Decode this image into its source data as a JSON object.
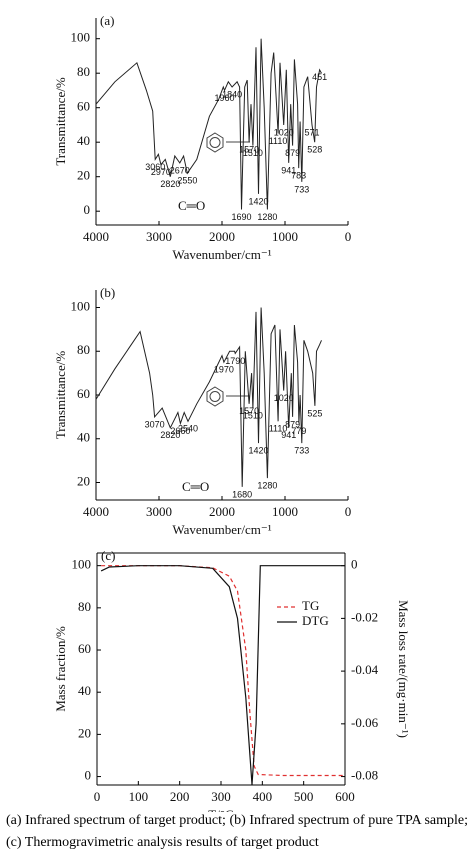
{
  "chart_data": [
    {
      "type": "line",
      "panel_label": "(a)",
      "ylabel": "Transmittance/%",
      "xlabel": "Wavenumber/cm⁻¹",
      "xlim": [
        4000,
        0
      ],
      "xticks": [
        4000,
        3000,
        2000,
        1000,
        0
      ],
      "ylim": [
        -8,
        112
      ],
      "yticks": [
        0,
        20,
        40,
        60,
        80,
        100
      ],
      "color": "#222222",
      "annotations": [
        "C═O"
      ],
      "x": [
        4000,
        3700,
        3350,
        3200,
        3100,
        3060,
        3010,
        2970,
        2900,
        2820,
        2750,
        2670,
        2610,
        2550,
        2400,
        2200,
        2050,
        1980,
        1960,
        1900,
        1840,
        1760,
        1720,
        1690,
        1640,
        1600,
        1570,
        1540,
        1510,
        1460,
        1420,
        1380,
        1330,
        1280,
        1220,
        1180,
        1110,
        1080,
        1020,
        980,
        941,
        910,
        879,
        850,
        800,
        783,
        760,
        733,
        700,
        640,
        571,
        528,
        500,
        451,
        420
      ],
      "values": [
        62,
        75,
        86,
        70,
        58,
        30,
        33,
        27,
        30,
        20,
        32,
        28,
        32,
        22,
        30,
        55,
        65,
        72,
        70,
        75,
        72,
        75,
        72,
        1,
        72,
        76,
        40,
        62,
        38,
        95,
        10,
        100,
        60,
        1,
        80,
        92,
        45,
        86,
        50,
        82,
        28,
        62,
        38,
        88,
        62,
        25,
        52,
        17,
        72,
        78,
        50,
        40,
        72,
        82,
        80
      ],
      "peak_labels": [
        1960,
        1840,
        451,
        1020,
        571,
        528,
        1110,
        879,
        941,
        783,
        733,
        1570,
        1510,
        1420,
        1280,
        1690,
        3060,
        2970,
        2670,
        2820,
        2550
      ]
    },
    {
      "type": "line",
      "panel_label": "(b)",
      "ylabel": "Transmittance/%",
      "xlabel": "Wavenumber/cm⁻¹",
      "xlim": [
        4000,
        0
      ],
      "xticks": [
        4000,
        3000,
        2000,
        1000,
        0
      ],
      "ylim": [
        12,
        108
      ],
      "yticks": [
        20,
        40,
        60,
        80,
        100
      ],
      "color": "#222222",
      "annotations": [
        "C═O"
      ],
      "x": [
        4000,
        3700,
        3300,
        3150,
        3100,
        3070,
        2950,
        2820,
        2700,
        2660,
        2600,
        2540,
        2400,
        2200,
        2000,
        1970,
        1880,
        1800,
        1790,
        1720,
        1680,
        1630,
        1570,
        1530,
        1510,
        1460,
        1420,
        1380,
        1330,
        1280,
        1220,
        1160,
        1110,
        1080,
        1020,
        990,
        941,
        900,
        879,
        850,
        800,
        779,
        760,
        733,
        700,
        640,
        560,
        525,
        500,
        450,
        420
      ],
      "values": [
        58,
        72,
        89,
        70,
        60,
        50,
        54,
        45,
        52,
        47,
        52,
        48,
        56,
        66,
        78,
        75,
        80,
        80,
        79,
        82,
        18,
        80,
        56,
        70,
        54,
        98,
        38,
        100,
        70,
        22,
        88,
        92,
        48,
        90,
        62,
        80,
        45,
        70,
        50,
        92,
        75,
        47,
        60,
        38,
        85,
        80,
        70,
        55,
        80,
        83,
        85
      ],
      "peak_labels": [
        1970,
        1790,
        3070,
        2820,
        2660,
        2540,
        1570,
        1510,
        1020,
        525,
        1110,
        879,
        941,
        779,
        733,
        1420,
        1280,
        1680
      ]
    },
    {
      "type": "dual-line",
      "panel_label": "(c)",
      "ylabel": "Mass fraction/%",
      "y2label": "Mass loss rate/(mg·min⁻¹)",
      "xlabel": "T/°C",
      "xlim": [
        0,
        600
      ],
      "xticks": [
        0,
        100,
        200,
        300,
        400,
        500,
        600
      ],
      "ylim": [
        -4,
        106
      ],
      "yticks": [
        0,
        20,
        40,
        60,
        80,
        100
      ],
      "y2lim": [
        -0.0832,
        0.0048
      ],
      "y2ticks": [
        0,
        -0.02,
        -0.04,
        -0.06,
        -0.08
      ],
      "legend": "upper right",
      "series": [
        {
          "name": "TG",
          "color": "#e03030",
          "dash": true,
          "x": [
            10,
            100,
            200,
            280,
            320,
            340,
            360,
            370,
            380,
            390,
            450,
            600
          ],
          "values": [
            100,
            100,
            100,
            99,
            95,
            88,
            60,
            30,
            5,
            1,
            0.5,
            0.5
          ]
        },
        {
          "name": "DTG",
          "color": "#111111",
          "axis": "y2",
          "x": [
            10,
            30,
            100,
            200,
            280,
            320,
            340,
            360,
            375,
            385,
            395,
            420,
            600
          ],
          "values": [
            -0.002,
            -0.0005,
            0,
            0,
            -0.001,
            -0.008,
            -0.02,
            -0.05,
            -0.083,
            -0.06,
            0,
            0,
            0
          ]
        }
      ]
    }
  ],
  "caption": "(a) Infrared spectrum of target product; (b) Infrared spectrum of pure TPA sample; (c) Thermogravimetric analysis results of target product"
}
